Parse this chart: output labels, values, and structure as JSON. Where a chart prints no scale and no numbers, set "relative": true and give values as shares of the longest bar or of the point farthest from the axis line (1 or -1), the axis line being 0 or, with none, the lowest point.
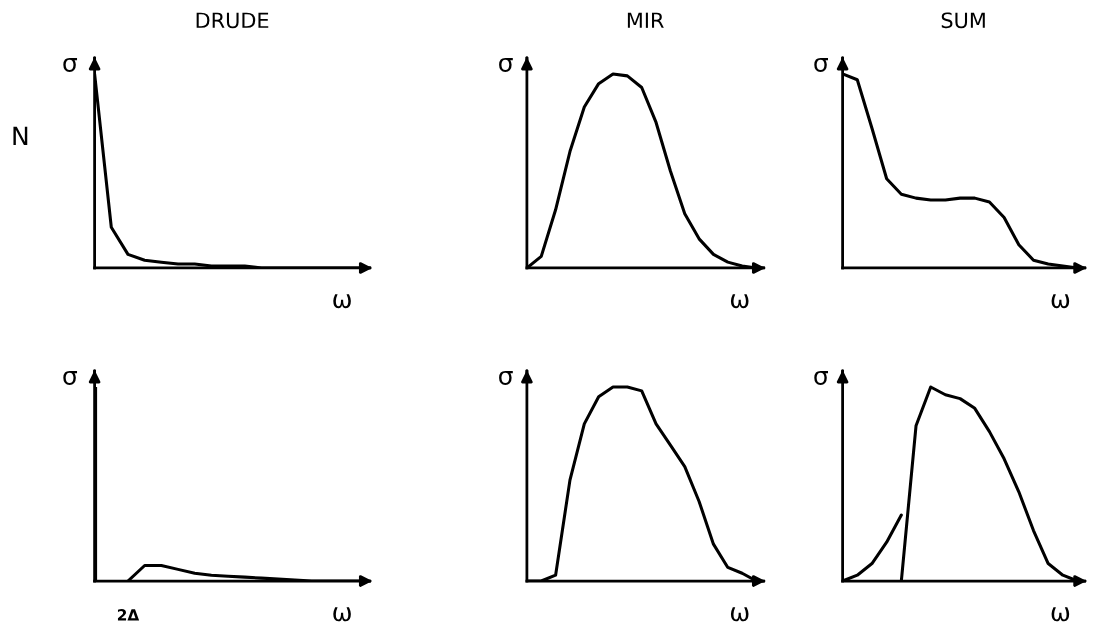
{
  "chart_data": [
    {
      "type": "line",
      "title": "DRUDE",
      "xlabel": "ω",
      "ylabel": "σ",
      "relative": true,
      "annotations": [
        "N"
      ],
      "categories": [
        null,
        null,
        null,
        null,
        null,
        null,
        null,
        null,
        null,
        null,
        null,
        null,
        null,
        null,
        null,
        null,
        null
      ],
      "series": [
        {
          "color": "#000000",
          "values": [
            1,
            0.21,
            0.07,
            0.04,
            0.03,
            0.02,
            0.02,
            0.01,
            0.01,
            0.01,
            0,
            0,
            0,
            0,
            0,
            0,
            0
          ]
        }
      ]
    },
    {
      "type": "line",
      "title": "MIR",
      "xlabel": "ω",
      "ylabel": "σ",
      "relative": true,
      "categories": [
        null,
        null,
        null,
        null,
        null,
        null,
        null,
        null,
        null,
        null,
        null,
        null,
        null,
        null,
        null,
        null,
        null
      ],
      "series": [
        {
          "color": "#000000",
          "values": [
            0,
            0.06,
            0.3,
            0.6,
            0.83,
            0.95,
            1.0,
            0.99,
            0.93,
            0.75,
            0.5,
            0.28,
            0.15,
            0.07,
            0.03,
            0.01,
            0
          ]
        }
      ]
    },
    {
      "type": "line",
      "title": "SUM",
      "xlabel": "ω",
      "ylabel": "σ",
      "relative": true,
      "categories": [
        null,
        null,
        null,
        null,
        null,
        null,
        null,
        null,
        null,
        null,
        null,
        null,
        null,
        null,
        null,
        null,
        null
      ],
      "series": [
        {
          "color": "#000000",
          "values": [
            1.0,
            0.97,
            0.72,
            0.46,
            0.38,
            0.36,
            0.35,
            0.35,
            0.36,
            0.36,
            0.34,
            0.26,
            0.12,
            0.04,
            0.02,
            0.01,
            0
          ]
        }
      ]
    },
    {
      "type": "line",
      "xlabel": "ω",
      "ylabel": "σ",
      "relative": true,
      "annotations": [
        {
          "text": "2Δ",
          "y": 0
        }
      ],
      "categories": [
        null,
        null,
        null,
        null,
        null,
        null,
        null,
        null,
        null,
        null,
        null,
        null,
        null,
        null,
        null,
        null,
        null
      ],
      "series": [
        {
          "type": "bar",
          "color": "#000000",
          "values": [
            1,
            null,
            null,
            null,
            null,
            null,
            null,
            null,
            null,
            null,
            null,
            null,
            null,
            null,
            null,
            null,
            null
          ]
        },
        {
          "color": "#000000",
          "values": [
            null,
            null,
            0,
            0.08,
            0.08,
            0.06,
            0.04,
            0.03,
            0.025,
            0.02,
            0.015,
            0.01,
            0.005,
            0,
            0,
            0,
            0
          ]
        }
      ]
    },
    {
      "type": "line",
      "xlabel": "ω",
      "ylabel": "σ",
      "relative": true,
      "categories": [
        null,
        null,
        null,
        null,
        null,
        null,
        null,
        null,
        null,
        null,
        null,
        null,
        null,
        null,
        null,
        null,
        null
      ],
      "series": [
        {
          "color": "#000000",
          "values": [
            0,
            0,
            0.03,
            0.52,
            0.81,
            0.95,
            1.0,
            1.0,
            0.98,
            0.81,
            0.7,
            0.59,
            0.41,
            0.19,
            0.07,
            0.04,
            0
          ]
        }
      ]
    },
    {
      "type": "line",
      "xlabel": "ω",
      "ylabel": "σ",
      "relative": true,
      "categories": [
        null,
        null,
        null,
        null,
        null,
        null,
        null,
        null,
        null,
        null,
        null,
        null,
        null,
        null,
        null,
        null,
        null
      ],
      "series": [
        {
          "color": "#000000",
          "values": [
            0,
            0.03,
            0.09,
            0.2,
            0.34,
            null,
            null,
            null,
            null,
            null,
            null,
            null,
            null,
            null,
            null,
            null,
            null
          ]
        },
        {
          "color": "#000000",
          "values": [
            null,
            null,
            null,
            null,
            0,
            0.8,
            1.0,
            0.96,
            0.94,
            0.89,
            0.77,
            0.63,
            0.46,
            0.26,
            0.09,
            0.03,
            0
          ]
        }
      ]
    }
  ]
}
